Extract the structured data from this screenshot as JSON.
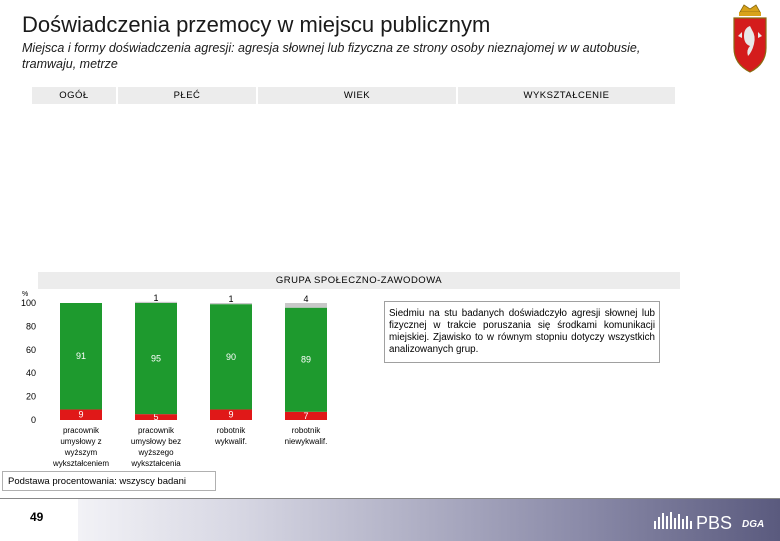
{
  "slide": {
    "title": "Doświadczenia przemocy w miejscu publicznym",
    "subtitle": "Miejsca i formy doświadczenia agresji: agresja słownej lub fizyczna ze strony osoby nieznajomej w w autobusie, tramwaju, metrze",
    "headers": [
      "OGÓŁ",
      "PŁEĆ",
      "WIEK",
      "WYKSZTAŁCENIE"
    ],
    "section_label": "GRUPA SPOŁECZNO-ZAWODOWA",
    "note": "Siedmiu na stu badanych doświadczyło agresji słownej lub fizycznej w trakcie poruszania się środkami komunikacji miejskiej. Zjawisko to w równym stopniu dotyczy wszystkich analizowanych grup.",
    "base_note": "Podstawa procentowania: wszyscy badani",
    "page_number": "49",
    "logo_text": "PBS",
    "logo_sub": "DGA",
    "colors": {
      "green": "#1e9a2e",
      "red": "#e01818",
      "gray": "#c8c8c8",
      "header_bg": "#ececec"
    }
  },
  "chart_data": {
    "type": "bar",
    "stacked": true,
    "percent_marker": "%",
    "categories": [
      [
        "pracownik",
        "umysłowy z",
        "wyższym",
        "wykształceniem"
      ],
      [
        "pracownik",
        "umysłowy bez",
        "wyższego",
        "wykształcenia"
      ],
      [
        "robotnik",
        "wykwalif."
      ],
      [
        "robotnik",
        "niewykwalif."
      ]
    ],
    "series": [
      {
        "color": "#e01818",
        "values": [
          9,
          5,
          9,
          7
        ]
      },
      {
        "color": "#1e9a2e",
        "values": [
          91,
          95,
          90,
          89
        ]
      },
      {
        "color": "#c8c8c8",
        "values": [
          0,
          1,
          1,
          4
        ]
      }
    ],
    "ylim": [
      0,
      100
    ],
    "yticks": [
      0,
      20,
      40,
      60,
      80,
      100
    ],
    "grid": false
  }
}
